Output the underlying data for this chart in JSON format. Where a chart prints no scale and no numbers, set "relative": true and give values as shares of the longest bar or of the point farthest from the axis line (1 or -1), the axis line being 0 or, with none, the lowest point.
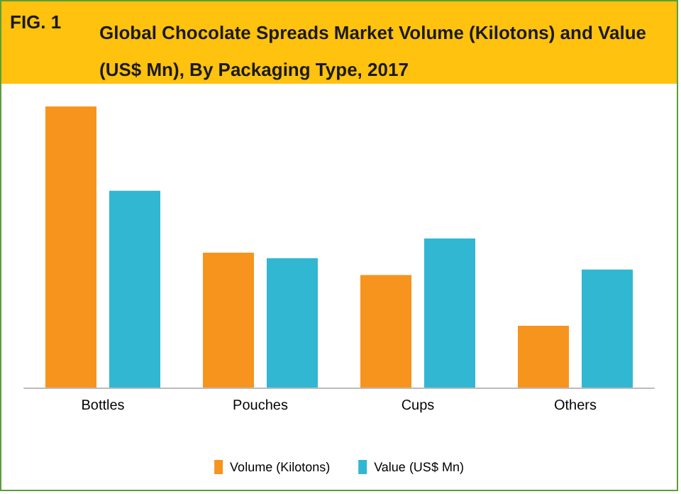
{
  "chart_data": {
    "type": "bar",
    "title": "Global Chocolate Spreads Market Volume (Kilotons) and Value (US$ Mn), By Packaging Type, 2017",
    "annotations": [
      "FIG. 1"
    ],
    "relative": true,
    "categories": [
      "Bottles",
      "Pouches",
      "Cups",
      "Others"
    ],
    "series": [
      {
        "name": "Volume (Kilotons)",
        "color": "#f7941d",
        "values": [
          1,
          0.48,
          0.4,
          0.22
        ]
      },
      {
        "name": "Value (US$ Mn)",
        "color": "#31b7d1",
        "values": [
          0.7,
          0.46,
          0.53,
          0.42
        ]
      }
    ],
    "legend": "bottom"
  }
}
